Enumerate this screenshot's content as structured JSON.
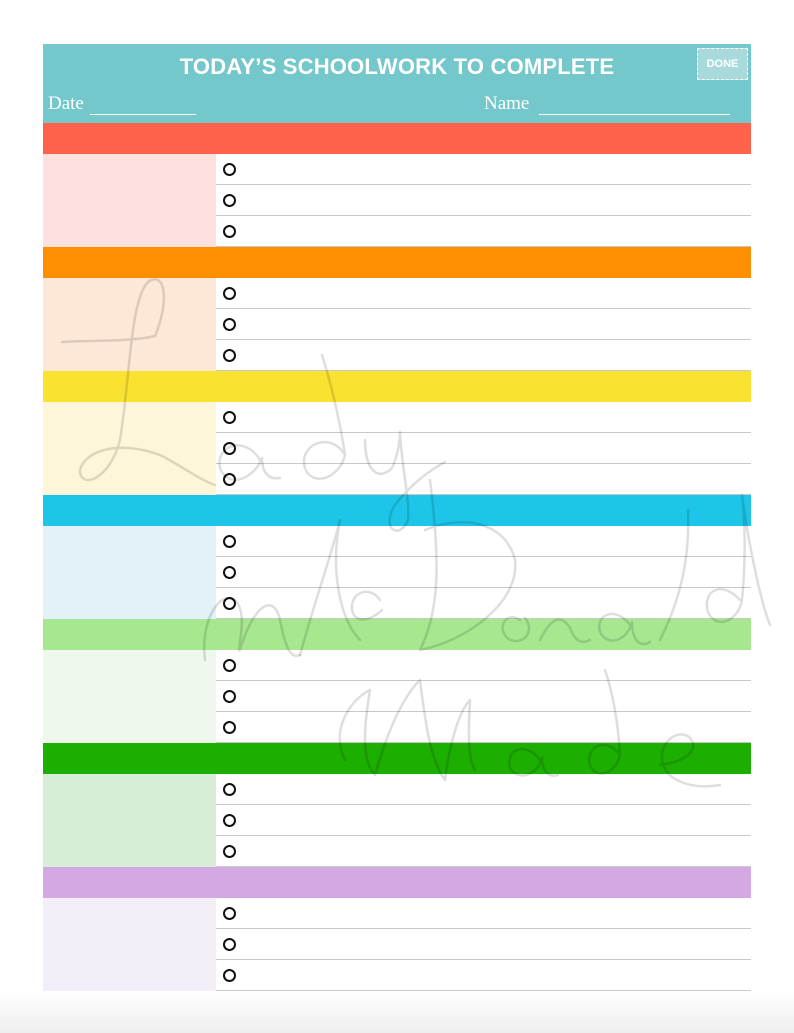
{
  "header": {
    "title": "TODAY’S SCHOOLWORK TO COMPLETE",
    "done_label": "DONE",
    "date_label": "Date",
    "name_label": "Name",
    "color": "#74c7cb"
  },
  "sections": [
    {
      "bar_color": "#ff624b",
      "cell_color": "#fee0df",
      "tasks": 3
    },
    {
      "bar_color": "#ff8f00",
      "cell_color": "#fde7d6",
      "tasks": 3
    },
    {
      "bar_color": "#f9e230",
      "cell_color": "#fdf6d8",
      "tasks": 3
    },
    {
      "bar_color": "#1dc5e8",
      "cell_color": "#e3f1f8",
      "tasks": 3
    },
    {
      "bar_color": "#a6e78f",
      "cell_color": "#eef8ec",
      "tasks": 3
    },
    {
      "bar_color": "#1cae00",
      "cell_color": "#d8edd6",
      "tasks": 3
    },
    {
      "bar_color": "#d2a9e3",
      "cell_color": "#f4eef9",
      "tasks": 3
    }
  ],
  "watermark": {
    "text": "Lady McDonald Made"
  }
}
